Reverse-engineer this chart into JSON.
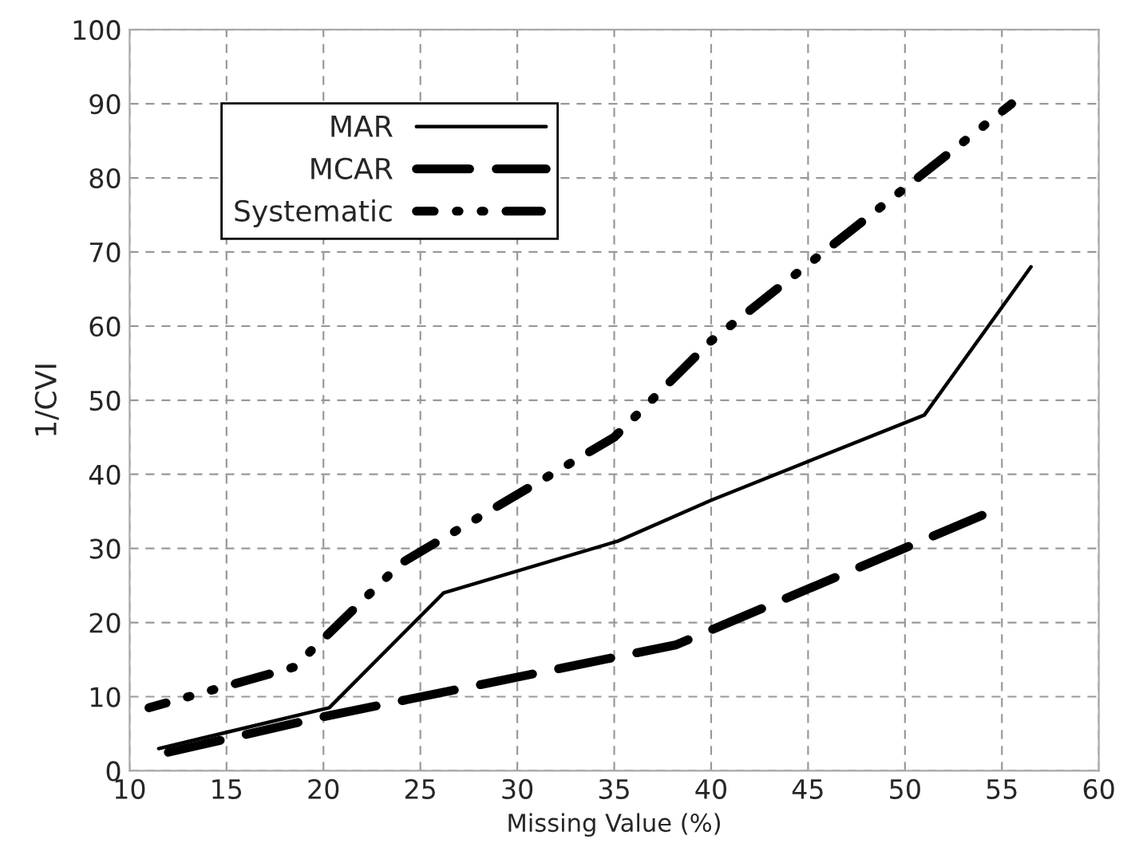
{
  "chart_data": {
    "type": "line",
    "xlabel": "Missing Value (%)",
    "ylabel": "1/CVI",
    "xlim": [
      10,
      60
    ],
    "xticks": [
      10,
      15,
      20,
      25,
      30,
      35,
      40,
      45,
      50,
      55,
      60
    ],
    "ylim": [
      0,
      100
    ],
    "yticks": [
      0,
      10,
      20,
      30,
      40,
      50,
      60,
      70,
      80,
      90,
      100
    ],
    "grid": true,
    "legend": "top left",
    "series": [
      {
        "name": "MAR",
        "color": "#000000",
        "line_style": "solid",
        "x": [
          11.5,
          20.3,
          26.2,
          35.2,
          40,
          51,
          56.5
        ],
        "values": [
          3,
          8.5,
          24,
          31,
          36.5,
          48,
          68
        ]
      },
      {
        "name": "MCAR",
        "color": "#000000",
        "line_style": "dashed",
        "x": [
          12,
          20,
          38.2,
          54
        ],
        "values": [
          2.5,
          7.3,
          17,
          34.5
        ]
      },
      {
        "name": "Systematic",
        "color": "#000000",
        "line_style": "dashdotdot",
        "x": [
          11,
          18.5,
          24,
          35,
          40,
          55.5
        ],
        "values": [
          8.5,
          14,
          28,
          45,
          58,
          90
        ]
      }
    ]
  }
}
